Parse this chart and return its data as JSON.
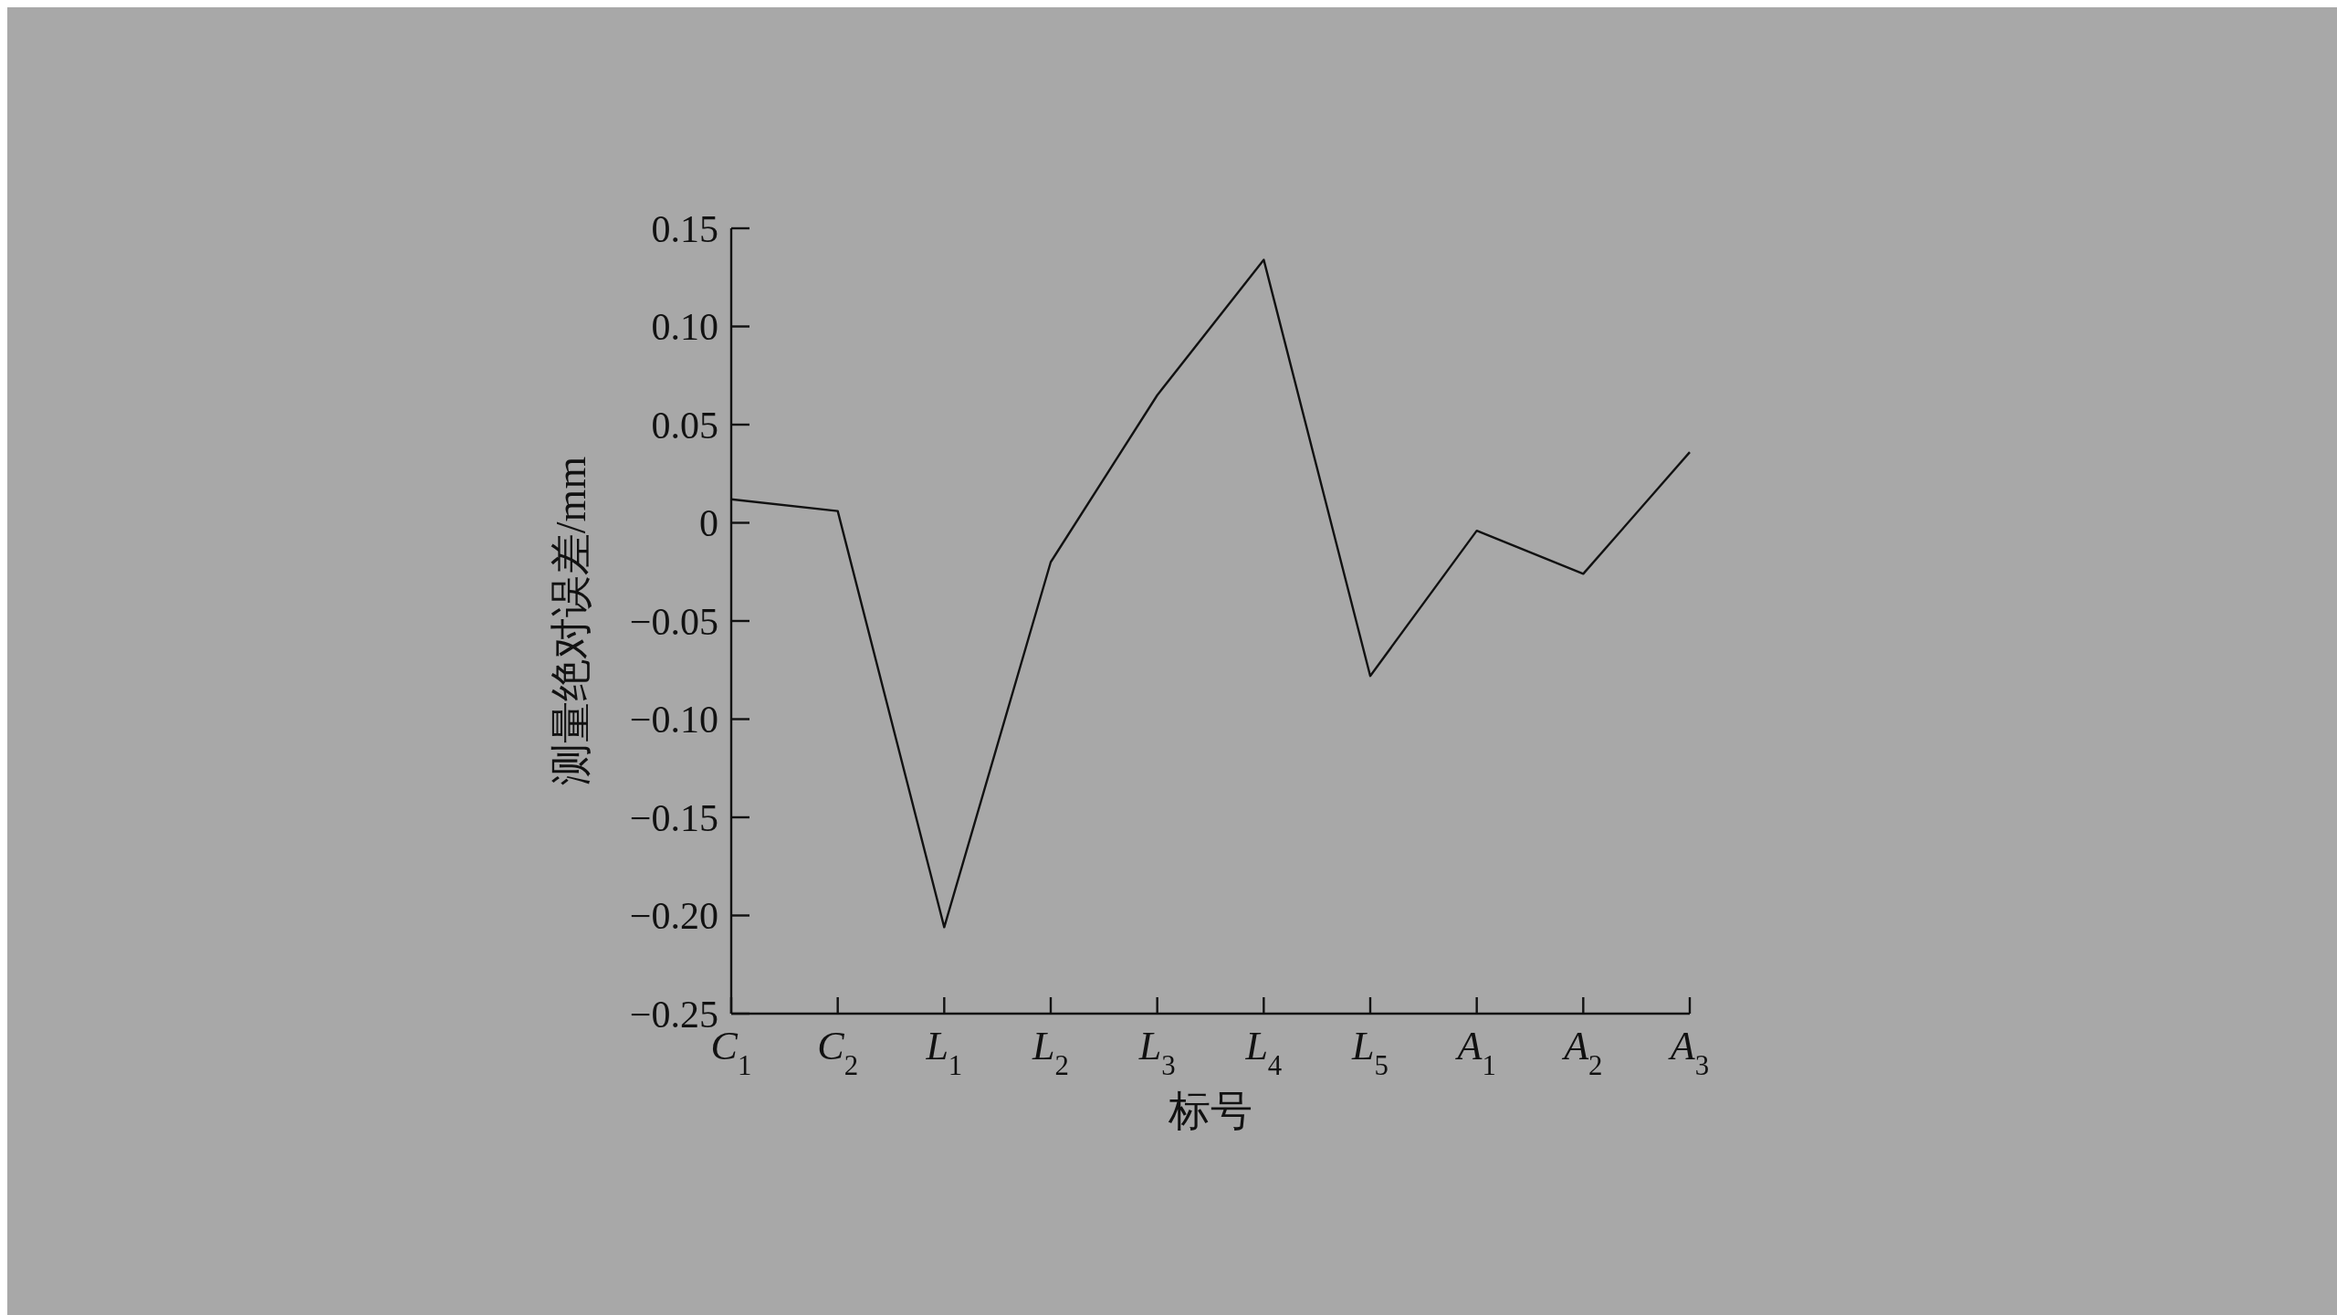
{
  "chart_data": {
    "type": "line",
    "xlabel": "标号",
    "ylabel": "测量绝对误差/mm",
    "categories": [
      "C$_{1}$",
      "C$_{2}$",
      "L$_{1}$",
      "L$_{2}$",
      "L$_{3}$",
      "L$_{4}$",
      "L$_{5}$",
      "A$_{1}$",
      "A$_{2}$",
      "A$_{3}$"
    ],
    "series": [
      {
        "color": "#111111",
        "values": [
          0.012,
          0.006,
          -0.206,
          -0.02,
          0.065,
          0.134,
          -0.078,
          -0.004,
          -0.026,
          0.036
        ]
      }
    ],
    "ylim": [
      -0.25,
      0.15
    ],
    "yticks": [
      {
        "value": -0.25,
        "label": "−0.25"
      },
      {
        "value": -0.2,
        "label": "−0.20"
      },
      {
        "value": -0.15,
        "label": "−0.15"
      },
      {
        "value": -0.1,
        "label": "−0.10"
      },
      {
        "value": -0.05,
        "label": "−0.05"
      },
      {
        "value": 0,
        "label": "0"
      },
      {
        "value": 0.05,
        "label": "0.05"
      },
      {
        "value": 0.1,
        "label": "0.10"
      },
      {
        "value": 0.15,
        "label": "0.15"
      }
    ],
    "grid": false,
    "marker": "none",
    "line_style": "solid"
  }
}
